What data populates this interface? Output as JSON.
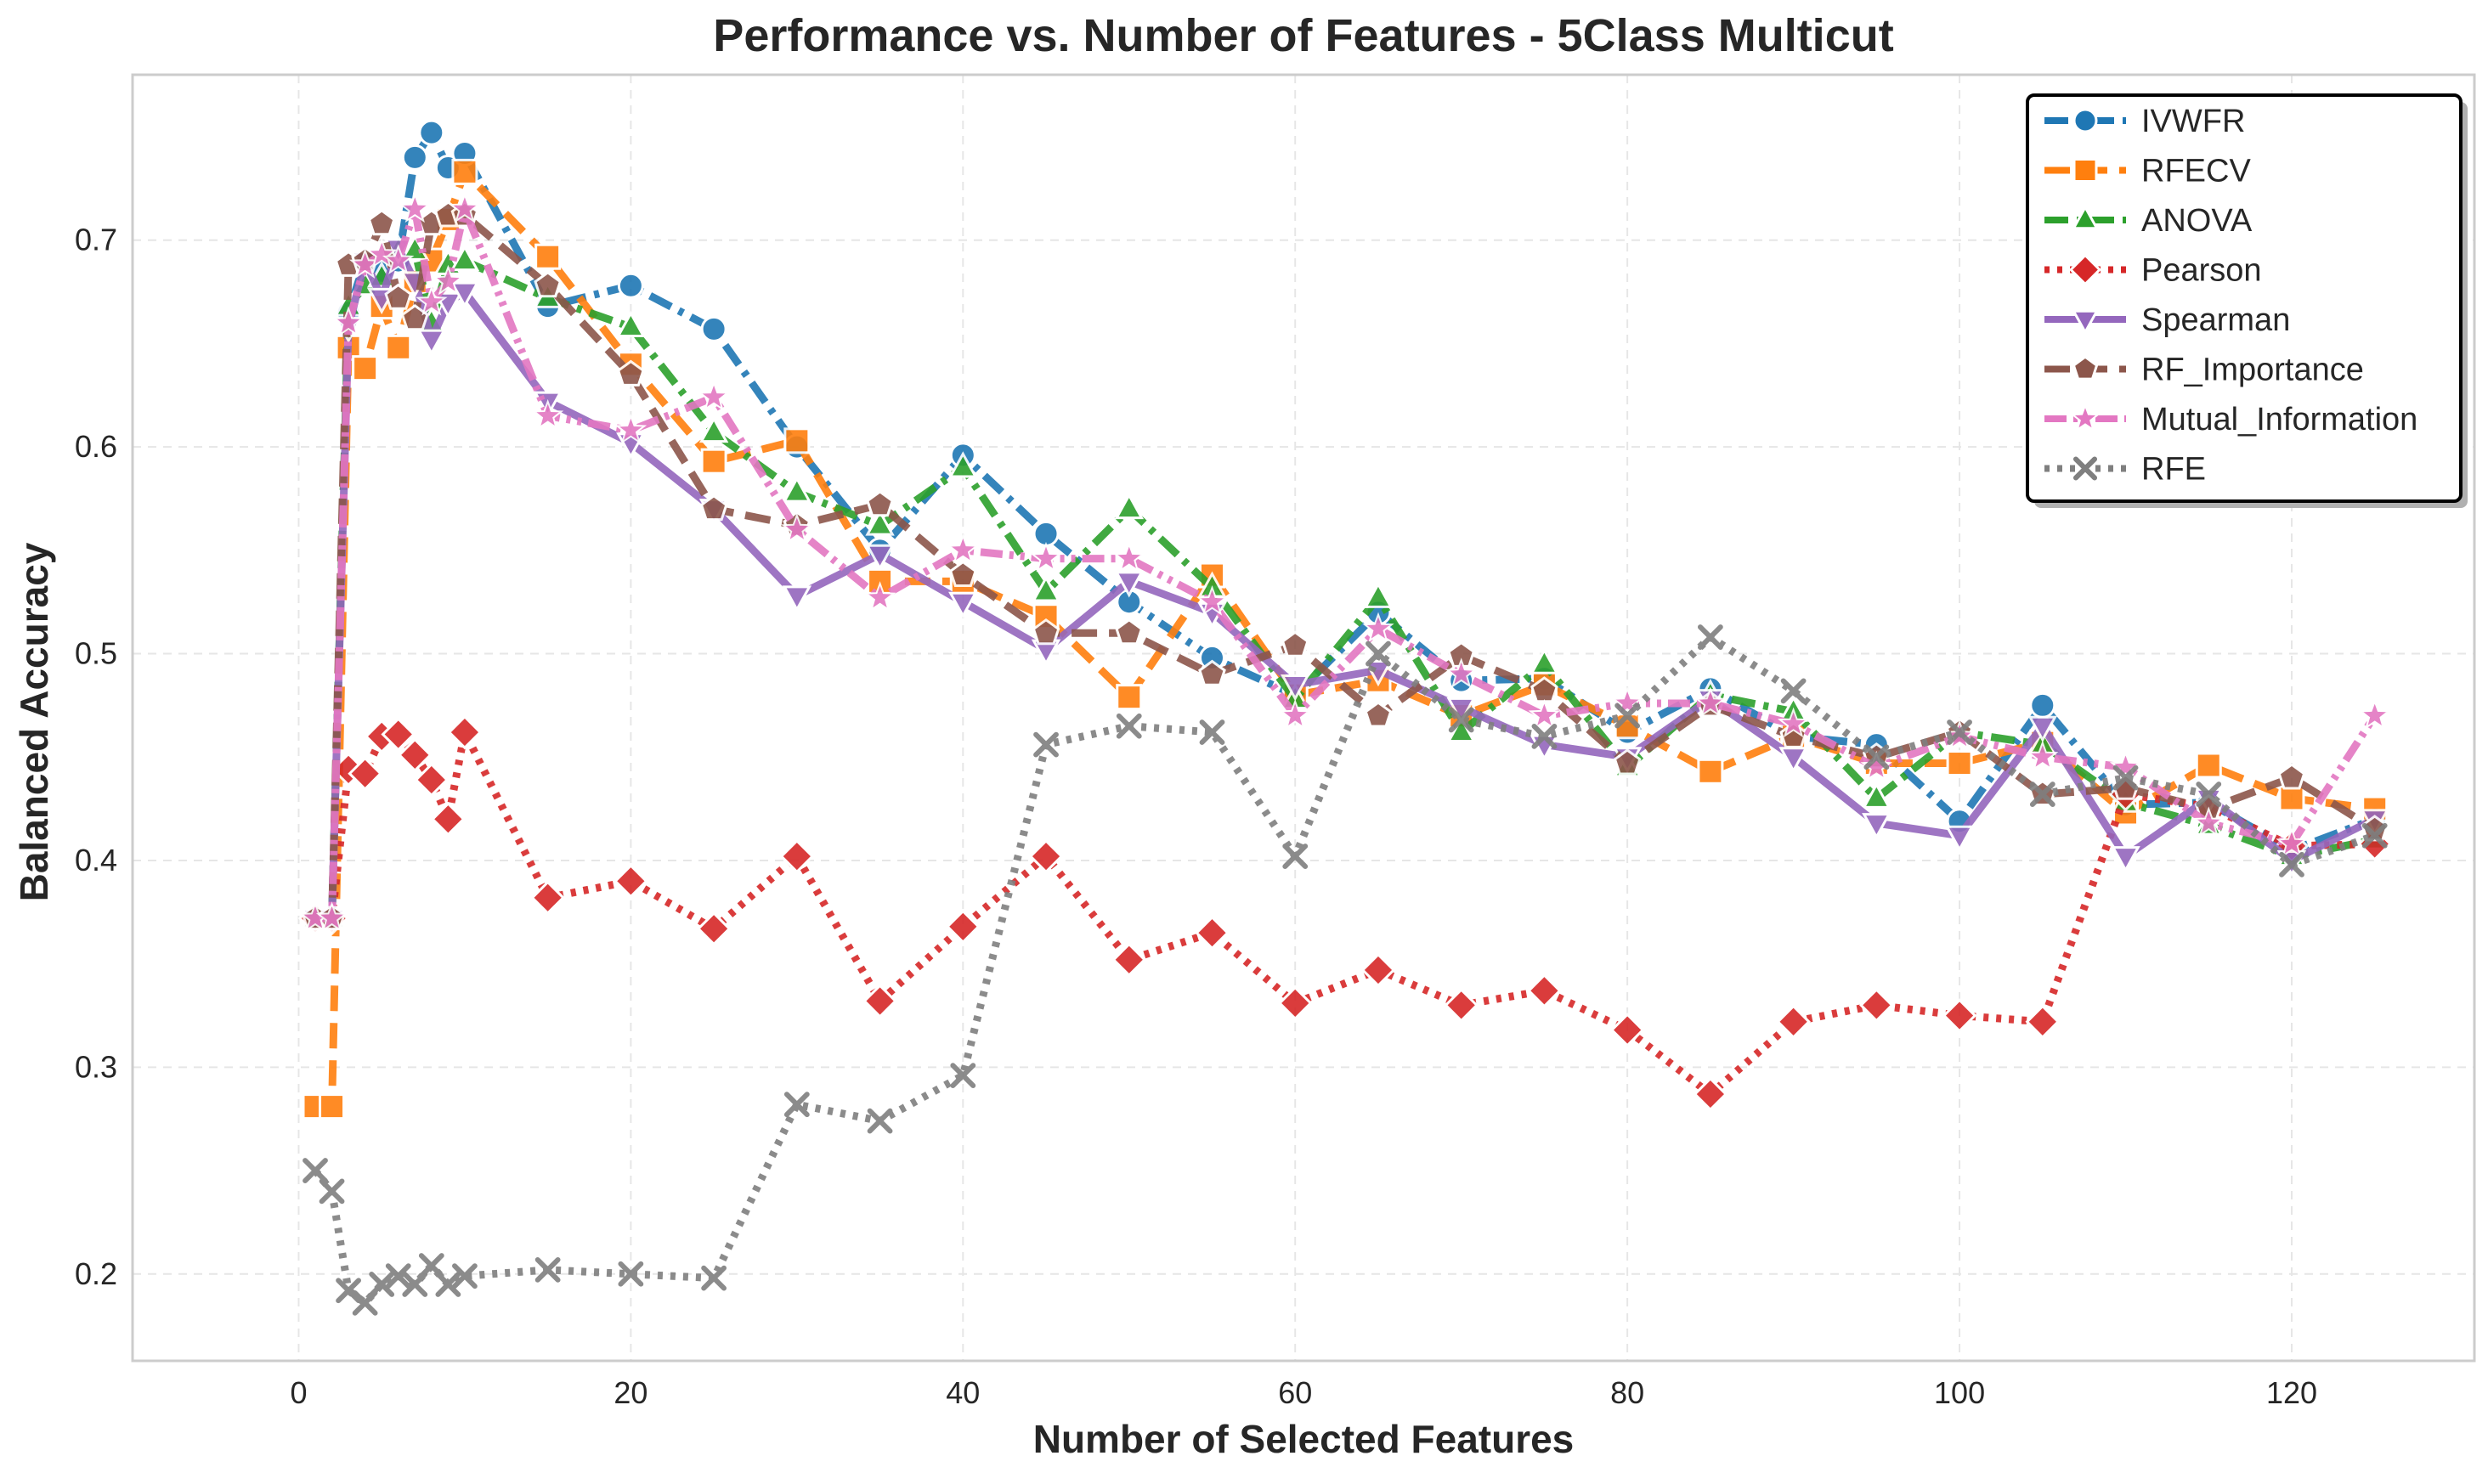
{
  "chart_data": {
    "type": "line",
    "title": "Performance vs. Number of Features - 5Class Multicut",
    "xlabel": "Number of Selected Features",
    "ylabel": "Balanced Accuracy",
    "xlim": [
      -10,
      131
    ],
    "ylim": [
      0.158,
      0.78
    ],
    "xticks": [
      0,
      20,
      40,
      60,
      80,
      100,
      120
    ],
    "yticks": [
      0.2,
      0.3,
      0.4,
      0.5,
      0.6,
      0.7
    ],
    "grid": true,
    "legend_position": "top-right",
    "x": [
      1,
      2,
      3,
      4,
      5,
      6,
      7,
      8,
      9,
      10,
      15,
      20,
      25,
      30,
      35,
      40,
      45,
      50,
      55,
      60,
      65,
      70,
      75,
      80,
      85,
      90,
      95,
      100,
      105,
      110,
      115,
      120,
      125
    ],
    "series": [
      {
        "name": "IVWFR",
        "color": "#1f77b4",
        "dash": "dashdot",
        "marker": "circle",
        "values": [
          0.372,
          0.372,
          0.665,
          0.69,
          0.685,
          0.69,
          0.74,
          0.752,
          0.735,
          0.742,
          0.668,
          0.678,
          0.657,
          0.6,
          0.55,
          0.596,
          0.558,
          0.525,
          0.498,
          0.48,
          0.52,
          0.487,
          0.488,
          0.462,
          0.483,
          0.46,
          0.456,
          0.419,
          0.475,
          0.427,
          0.428,
          0.405,
          0.42
        ]
      },
      {
        "name": "RFECV",
        "color": "#ff7f0e",
        "dash": "dashed",
        "marker": "square",
        "values": [
          0.281,
          0.281,
          0.648,
          0.638,
          0.668,
          0.648,
          0.68,
          0.69,
          0.71,
          0.733,
          0.692,
          0.64,
          0.593,
          0.603,
          0.535,
          0.535,
          0.518,
          0.479,
          0.538,
          0.48,
          0.487,
          0.47,
          0.485,
          0.465,
          0.443,
          0.46,
          0.447,
          0.447,
          0.457,
          0.423,
          0.446,
          0.43,
          0.425
        ]
      },
      {
        "name": "ANOVA",
        "color": "#2ca02c",
        "dash": "dashdot",
        "marker": "triangle-up",
        "values": [
          0.372,
          0.372,
          0.668,
          0.678,
          0.682,
          0.695,
          0.695,
          0.66,
          0.688,
          0.69,
          0.672,
          0.658,
          0.607,
          0.578,
          0.562,
          0.59,
          0.53,
          0.57,
          0.532,
          0.478,
          0.527,
          0.462,
          0.495,
          0.445,
          0.48,
          0.472,
          0.43,
          0.462,
          0.456,
          0.428,
          0.417,
          0.402,
          0.41
        ]
      },
      {
        "name": "Pearson",
        "color": "#d62728",
        "dash": "dotted",
        "marker": "diamond",
        "values": [
          0.372,
          0.372,
          0.444,
          0.442,
          0.46,
          0.461,
          0.451,
          0.439,
          0.42,
          0.462,
          0.382,
          0.39,
          0.367,
          0.402,
          0.332,
          0.368,
          0.402,
          0.352,
          0.365,
          0.331,
          0.347,
          0.33,
          0.337,
          0.318,
          0.287,
          0.322,
          0.33,
          0.325,
          0.322,
          0.432,
          0.426,
          0.407,
          0.408
        ]
      },
      {
        "name": "Spearman",
        "color": "#9467bd",
        "dash": "solid",
        "marker": "triangle-down",
        "values": [
          0.372,
          0.372,
          0.658,
          0.69,
          0.672,
          0.696,
          0.68,
          0.652,
          0.67,
          0.675,
          0.622,
          0.602,
          0.57,
          0.528,
          0.548,
          0.525,
          0.502,
          0.535,
          0.52,
          0.485,
          0.492,
          0.474,
          0.456,
          0.45,
          0.478,
          0.45,
          0.418,
          0.412,
          0.465,
          0.402,
          0.43,
          0.4,
          0.42
        ]
      },
      {
        "name": "RF_Importance",
        "color": "#8c564b",
        "dash": "dashed",
        "marker": "pentagon",
        "values": [
          0.372,
          0.372,
          0.688,
          0.69,
          0.708,
          0.672,
          0.662,
          0.708,
          0.712,
          0.712,
          0.678,
          0.635,
          0.57,
          0.562,
          0.572,
          0.538,
          0.51,
          0.51,
          0.49,
          0.504,
          0.47,
          0.499,
          0.482,
          0.447,
          0.475,
          0.46,
          0.45,
          0.462,
          0.432,
          0.435,
          0.425,
          0.44,
          0.415
        ]
      },
      {
        "name": "Mutual_Information",
        "color": "#e377c2",
        "dash": "dashdotdot",
        "marker": "star",
        "values": [
          0.372,
          0.372,
          0.66,
          0.688,
          0.693,
          0.69,
          0.715,
          0.67,
          0.68,
          0.715,
          0.615,
          0.608,
          0.624,
          0.56,
          0.527,
          0.55,
          0.546,
          0.546,
          0.525,
          0.47,
          0.512,
          0.49,
          0.47,
          0.476,
          0.476,
          0.466,
          0.445,
          0.46,
          0.45,
          0.445,
          0.418,
          0.408,
          0.47
        ]
      },
      {
        "name": "RFE",
        "color": "#7f7f7f",
        "dash": "dotted",
        "marker": "x",
        "values": [
          0.25,
          0.24,
          0.192,
          0.186,
          0.195,
          0.199,
          0.195,
          0.204,
          0.195,
          0.199,
          0.202,
          0.2,
          0.198,
          0.282,
          0.274,
          0.296,
          0.456,
          0.465,
          0.462,
          0.402,
          0.5,
          0.468,
          0.46,
          0.47,
          0.508,
          0.482,
          0.45,
          0.462,
          0.432,
          0.44,
          0.432,
          0.398,
          0.412
        ]
      }
    ]
  }
}
